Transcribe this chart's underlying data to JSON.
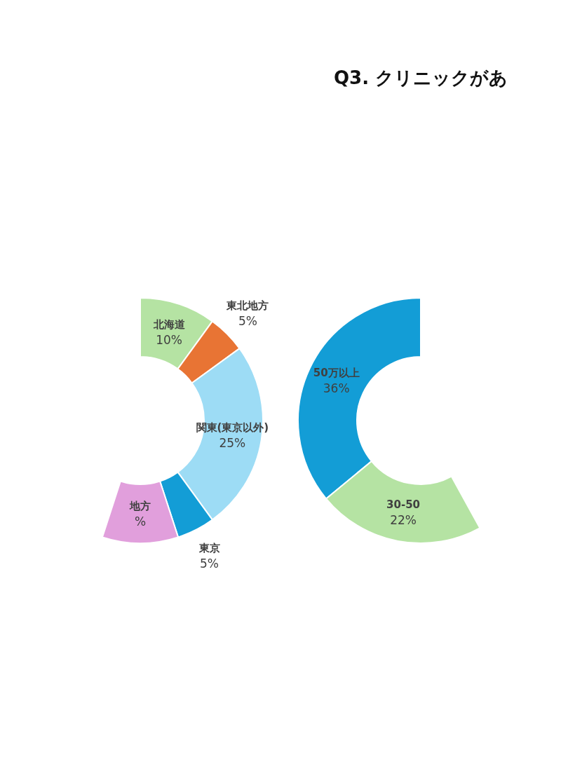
{
  "chart_data": [
    {
      "type": "donut",
      "categories": [
        "北海道",
        "東北地方",
        "関東(東京以外)",
        "東京",
        "地方"
      ],
      "values": [
        10,
        5,
        25,
        5,
        10
      ],
      "colors": [
        "#b5e3a3",
        "#e87434",
        "#9ddcf5",
        "#139dd6",
        "#e19fdc"
      ],
      "value_labels": [
        "10%",
        "5%",
        "25%",
        "5%",
        "%"
      ]
    },
    {
      "type": "donut",
      "title": "Q3. クリニックがあ",
      "categories": [
        "50万以上",
        "30-50"
      ],
      "values": [
        36,
        22
      ],
      "colors": [
        "#139dd6",
        "#b5e3a3"
      ],
      "value_labels": [
        "36%",
        "22%"
      ]
    }
  ]
}
